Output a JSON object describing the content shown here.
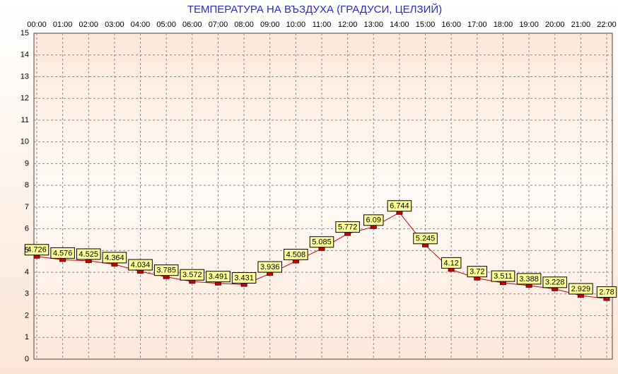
{
  "chart_data": {
    "type": "line",
    "title": "ТЕМПЕРАТУРА НА ВЪЗДУХА  (ГРАДУСИ, ЦЕЛЗИЙ)",
    "categories": [
      "00:00",
      "01:00",
      "02:00",
      "03:00",
      "04:00",
      "05:00",
      "06:00",
      "07:00",
      "08:00",
      "09:00",
      "10:00",
      "11:00",
      "12:00",
      "13:00",
      "14:00",
      "15:00",
      "16:00",
      "17:00",
      "18:00",
      "19:00",
      "20:00",
      "21:00",
      "22:00"
    ],
    "values": [
      4.726,
      4.576,
      4.525,
      4.364,
      4.034,
      3.785,
      3.572,
      3.491,
      3.431,
      3.936,
      4.508,
      5.085,
      5.772,
      6.09,
      6.744,
      5.245,
      4.12,
      3.72,
      3.511,
      3.388,
      3.228,
      2.929,
      2.78
    ],
    "color": "#cc0000",
    "ylim": [
      0,
      15
    ],
    "yticks": [
      0,
      1,
      2,
      3,
      4,
      5,
      6,
      7,
      8,
      9,
      10,
      11,
      12,
      13,
      14,
      15
    ],
    "grid": true
  }
}
